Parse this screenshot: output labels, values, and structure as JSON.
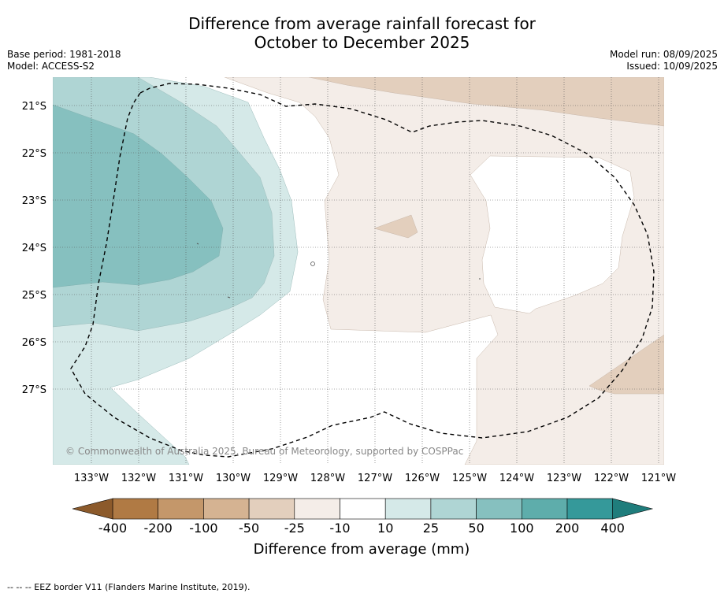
{
  "title": {
    "line1": "Difference from average rainfall forecast for",
    "line2": "October to December 2025"
  },
  "meta": {
    "base_period": "Base period: 1981-2018",
    "model": "Model: ACCESS-S2",
    "model_run": "Model run: 08/09/2025",
    "issued": "Issued: 10/09/2025"
  },
  "map": {
    "lat_labels": [
      "21°S",
      "22°S",
      "23°S",
      "24°S",
      "25°S",
      "26°S",
      "27°S"
    ],
    "lon_labels": [
      "133°W",
      "132°W",
      "131°W",
      "130°W",
      "129°W",
      "128°W",
      "127°W",
      "126°W",
      "125°W",
      "124°W",
      "123°W",
      "122°W",
      "121°W"
    ],
    "copyright": "© Commonwealth of Australia 2025, Bureau of Meteorology, supported by COSPPac",
    "border_line": "dashed-black"
  },
  "colorbar": {
    "title": "Difference from average (mm)",
    "tick_labels": [
      "-400",
      "-200",
      "-100",
      "-50",
      "-25",
      "-10",
      "10",
      "25",
      "50",
      "100",
      "200",
      "400"
    ],
    "colors": {
      "dry_extend": "#8c5a2b",
      "dry_400_200": "#b07a44",
      "dry_200_100": "#c4976a",
      "dry_100_50": "#d5b392",
      "dry_50_25": "#e3cfbd",
      "dry_25_10": "#f4ede8",
      "neutral": "#ffffff",
      "wet_10_25": "#d5e9e8",
      "wet_25_50": "#afd5d4",
      "wet_50_100": "#86c0bf",
      "wet_100_200": "#5eadab",
      "wet_200_400": "#35999a",
      "wet_extend": "#1f7d7c"
    }
  },
  "footnote": "--  --  -- EEZ border V11 (Flanders Marine Institute, 2019)."
}
